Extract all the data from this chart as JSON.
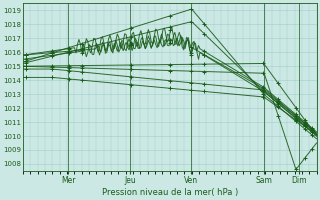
{
  "background_color": "#cce8e4",
  "plot_bg_color": "#cce8e4",
  "line_color": "#1a5c1a",
  "grid_color": "#9ececa",
  "text_color": "#1a5c1a",
  "xlabel_text": "Pression niveau de la mer( hPa )",
  "day_labels": [
    "Mer",
    "Jeu",
    "Ven",
    "Sam",
    "Dim"
  ],
  "day_positions": [
    0.155,
    0.365,
    0.572,
    0.82,
    0.942
  ],
  "ylim": [
    1007.5,
    1019.5
  ],
  "yticks": [
    1008,
    1009,
    1010,
    1011,
    1012,
    1013,
    1014,
    1015,
    1016,
    1017,
    1018,
    1019
  ],
  "xlim": [
    0.0,
    1.0
  ],
  "n_points": 200
}
